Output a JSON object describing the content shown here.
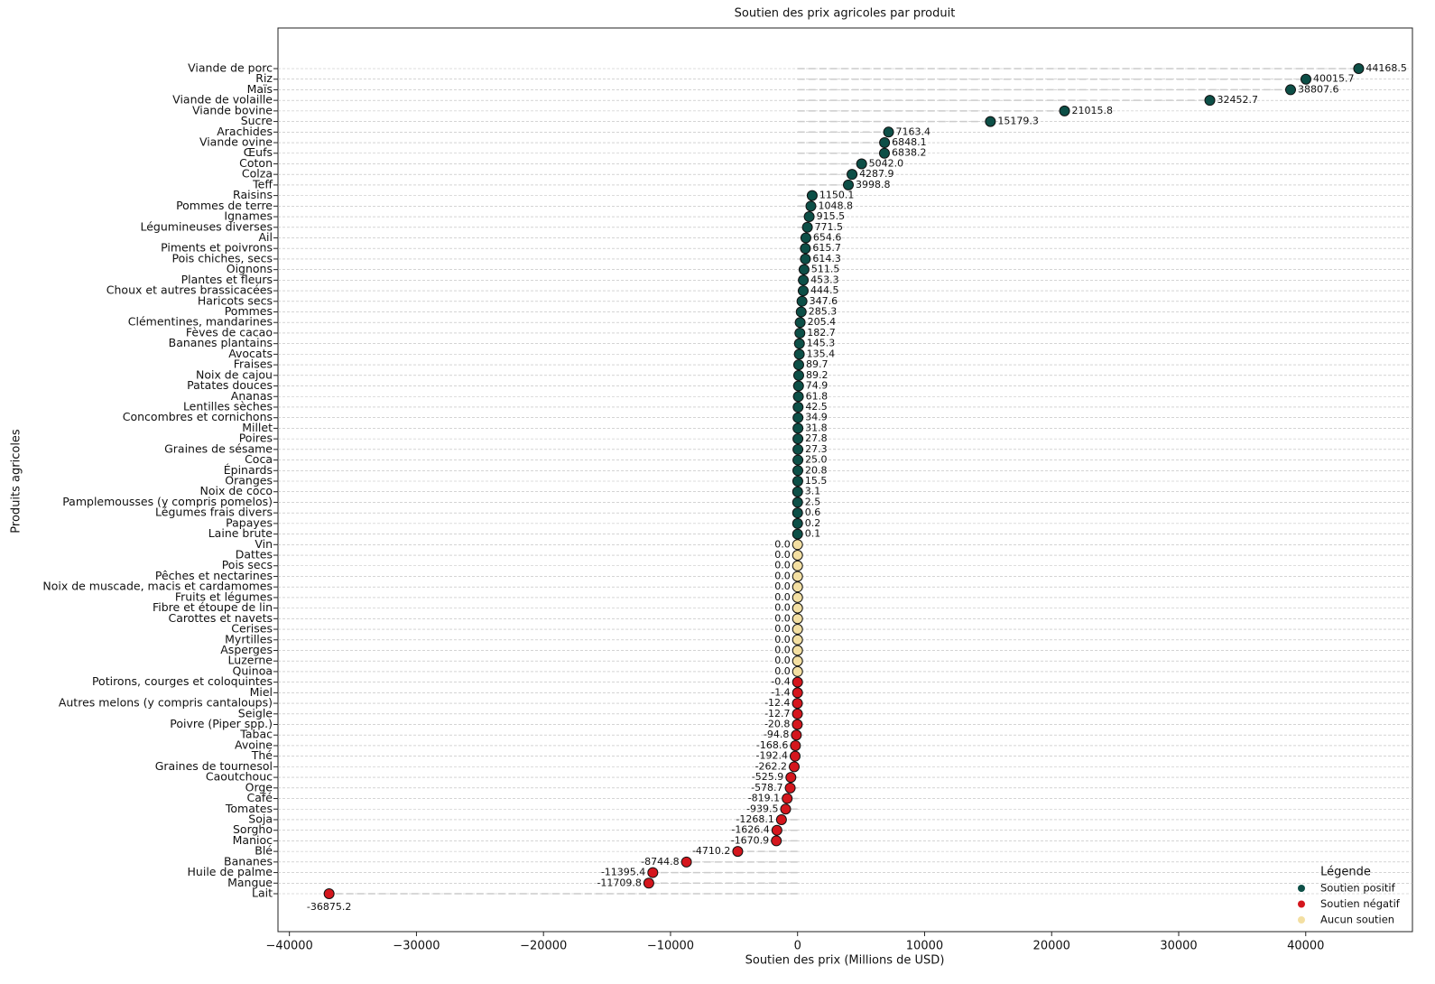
{
  "chart_data": {
    "type": "lollipop",
    "title": "Soutien des prix agricoles par produit",
    "xlabel": "Soutien des prix (Millions de USD)",
    "ylabel": "Produits agricoles",
    "categories": [
      "Viande de porc",
      "Riz",
      "Maïs",
      "Viande de volaille",
      "Viande bovine",
      "Sucre",
      "Arachides",
      "Viande ovine",
      "Œufs",
      "Coton",
      "Colza",
      "Teff",
      "Raisins",
      "Pommes de terre",
      "Ignames",
      "Légumineuses diverses",
      "Ail",
      "Piments et poivrons",
      "Pois chiches, secs",
      "Oignons",
      "Plantes et fleurs",
      "Choux et autres brassicacées",
      "Haricots secs",
      "Pommes",
      "Clémentines, mandarines",
      "Fèves de cacao",
      "Bananes plantains",
      "Avocats",
      "Fraises",
      "Noix de cajou",
      "Patates douces",
      "Ananas",
      "Lentilles sèches",
      "Concombres et cornichons",
      "Millet",
      "Poires",
      "Graines de sésame",
      "Coca",
      "Épinards",
      "Oranges",
      "Noix de coco",
      "Pamplemousses (y compris pomelos)",
      "Légumes frais divers",
      "Papayes",
      "Laine brute",
      "Vin",
      "Dattes",
      "Pois secs",
      "Pêches et nectarines",
      "Noix de muscade, macis et cardamomes",
      "Fruits et légumes",
      "Fibre et étoupe de lin",
      "Carottes et navets",
      "Cerises",
      "Myrtilles",
      "Asperges",
      "Luzerne",
      "Quinoa",
      "Potirons, courges et coloquintes",
      "Miel",
      "Autres melons (y compris cantaloups)",
      "Seigle",
      "Poivre (Piper spp.)",
      "Tabac",
      "Avoine",
      "Thé",
      "Graines de tournesol",
      "Caoutchouc",
      "Orge",
      "Café",
      "Tomates",
      "Soja",
      "Sorgho",
      "Manioc",
      "Blé",
      "Bananes",
      "Huile de palme",
      "Mangue",
      "Lait"
    ],
    "values": [
      44168.5,
      40015.7,
      38807.6,
      32452.7,
      21015.8,
      15179.3,
      7163.4,
      6848.1,
      6838.2,
      5042.0,
      4287.9,
      3998.8,
      1150.1,
      1048.8,
      915.5,
      771.5,
      654.6,
      615.7,
      614.3,
      511.5,
      453.3,
      444.5,
      347.6,
      285.3,
      205.4,
      182.7,
      145.3,
      135.4,
      89.7,
      89.2,
      74.9,
      61.8,
      42.5,
      34.9,
      31.8,
      27.8,
      27.3,
      25.0,
      20.8,
      15.5,
      3.1,
      2.5,
      0.6,
      0.2,
      0.1,
      0.0,
      0.0,
      0.0,
      0.0,
      0.0,
      0.0,
      0.0,
      0.0,
      0.0,
      0.0,
      0.0,
      0.0,
      0.0,
      -0.4,
      -1.4,
      -12.4,
      -12.7,
      -20.8,
      -94.8,
      -168.6,
      -192.4,
      -262.2,
      -525.9,
      -578.7,
      -819.1,
      -939.5,
      -1268.1,
      -1626.4,
      -1670.9,
      -4710.2,
      -8744.8,
      -11395.4,
      -11709.8,
      -36875.2
    ],
    "value_labels": [
      "44168.5",
      "40015.7",
      "38807.6",
      "32452.7",
      "21015.8",
      "15179.3",
      "7163.4",
      "6848.1",
      "6838.2",
      "5042.0",
      "4287.9",
      "3998.8",
      "1150.1",
      "1048.8",
      "915.5",
      "771.5",
      "654.6",
      "615.7",
      "614.3",
      "511.5",
      "453.3",
      "444.5",
      "347.6",
      "285.3",
      "205.4",
      "182.7",
      "145.3",
      "135.4",
      "89.7",
      "89.2",
      "74.9",
      "61.8",
      "42.5",
      "34.9",
      "31.8",
      "27.8",
      "27.3",
      "25.0",
      "20.8",
      "15.5",
      "3.1",
      "2.5",
      "0.6",
      "0.2",
      "0.1",
      "0.0",
      "0.0",
      "0.0",
      "0.0",
      "0.0",
      "0.0",
      "0.0",
      "0.0",
      "0.0",
      "0.0",
      "0.0",
      "0.0",
      "0.0",
      "-0.4",
      "-1.4",
      "-12.4",
      "-12.7",
      "-20.8",
      "-94.8",
      "-168.6",
      "-192.4",
      "-262.2",
      "-525.9",
      "-578.7",
      "-819.1",
      "-939.5",
      "-1268.1",
      "-1626.4",
      "-1670.9",
      "-4710.2",
      "-8744.8",
      "-11395.4",
      "-11709.8",
      "-36875.2"
    ],
    "xlim": [
      -40900,
      48400
    ],
    "xticks": [
      {
        "value": -40000,
        "label": "−40000"
      },
      {
        "value": -30000,
        "label": "−30000"
      },
      {
        "value": -20000,
        "label": "−20000"
      },
      {
        "value": -10000,
        "label": "−10000"
      },
      0,
      10000,
      20000,
      30000,
      40000
    ],
    "grid": true,
    "legend": {
      "title": "Légende",
      "position": "lower right",
      "items": [
        {
          "name": "Soutien positif",
          "color": "#0d4f47"
        },
        {
          "name": "Soutien négatif",
          "color": "#d4161d"
        },
        {
          "name": "Aucun soutien",
          "color": "#f3dfa2"
        }
      ]
    }
  }
}
